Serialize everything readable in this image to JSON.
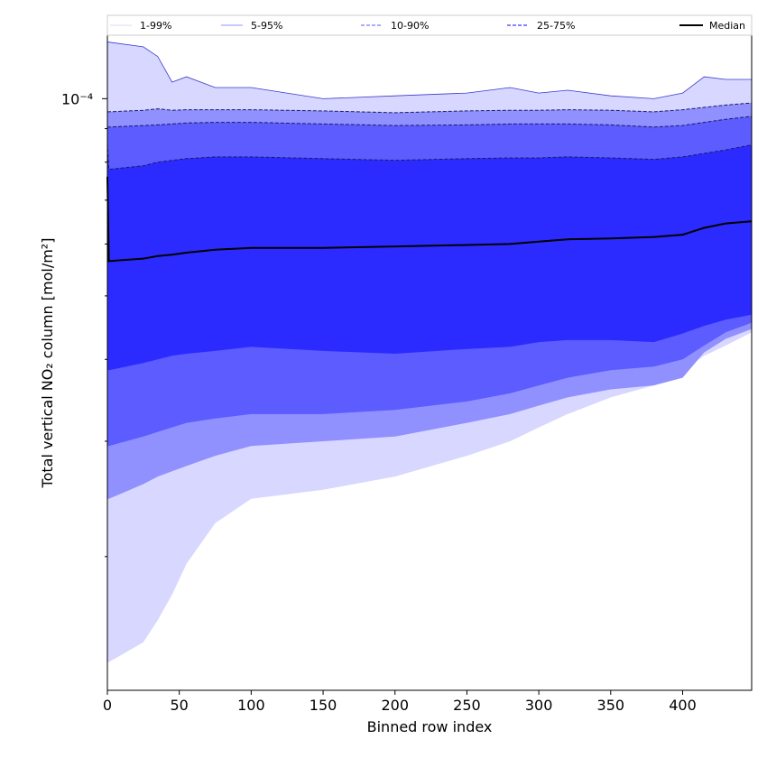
{
  "chart_data": {
    "type": "area",
    "title": "",
    "xlabel": "Binned row index",
    "ylabel": "Total vertical NO₂ column [mol/m²]",
    "xlim": [
      0,
      448
    ],
    "ylim": [
      1.25e-05,
      0.000125
    ],
    "yscale": "log",
    "x_ticks": [
      0,
      50,
      100,
      150,
      200,
      250,
      300,
      350,
      400
    ],
    "x_tick_labels": [
      "0",
      "50",
      "100",
      "150",
      "200",
      "250",
      "300",
      "350",
      "400"
    ],
    "y_major_tick_label": "10⁻⁴",
    "legend_placement": "top (above plot, horizontal)",
    "x": [
      0,
      1,
      25,
      35,
      45,
      55,
      75,
      100,
      150,
      200,
      250,
      280,
      300,
      320,
      350,
      380,
      400,
      415,
      430,
      448
    ],
    "series": [
      {
        "name": "1-99%",
        "color": "#d7d7ff",
        "lower": [
          1.38e-05,
          1.38e-05,
          1.48e-05,
          1.6e-05,
          1.75e-05,
          1.95e-05,
          2.25e-05,
          2.45e-05,
          2.53e-05,
          2.65e-05,
          2.85e-05,
          3e-05,
          3.15e-05,
          3.3e-05,
          3.5e-05,
          3.65e-05,
          3.85e-05,
          4.05e-05,
          4.2e-05,
          4.4e-05
        ],
        "upper": [
          0.000122,
          0.000122,
          0.00012,
          0.000116,
          0.000106,
          0.000108,
          0.000104,
          0.000104,
          0.0001,
          0.000101,
          0.000102,
          0.000104,
          0.000102,
          0.000103,
          0.000101,
          0.0001,
          0.000102,
          0.000108,
          0.000107,
          0.000107
        ]
      },
      {
        "name": "5-95%",
        "color": "#9090ff",
        "lower": [
          2.45e-05,
          2.45e-05,
          2.58e-05,
          2.65e-05,
          2.7e-05,
          2.75e-05,
          2.85e-05,
          2.95e-05,
          3e-05,
          3.05e-05,
          3.2e-05,
          3.3e-05,
          3.4e-05,
          3.5e-05,
          3.6e-05,
          3.65e-05,
          3.75e-05,
          4.1e-05,
          4.3e-05,
          4.45e-05
        ],
        "upper": [
          9.55e-05,
          9.55e-05,
          9.6e-05,
          9.65e-05,
          9.6e-05,
          9.62e-05,
          9.62e-05,
          9.62e-05,
          9.58e-05,
          9.52e-05,
          9.58e-05,
          9.6e-05,
          9.6e-05,
          9.62e-05,
          9.6e-05,
          9.55e-05,
          9.62e-05,
          9.7e-05,
          9.78e-05,
          9.85e-05
        ]
      },
      {
        "name": "10-90%",
        "color": "#5c5cff",
        "lower": [
          2.95e-05,
          2.95e-05,
          3.05e-05,
          3.1e-05,
          3.15e-05,
          3.2e-05,
          3.25e-05,
          3.3e-05,
          3.3e-05,
          3.35e-05,
          3.45e-05,
          3.55e-05,
          3.65e-05,
          3.75e-05,
          3.85e-05,
          3.9e-05,
          4e-05,
          4.2e-05,
          4.4e-05,
          4.55e-05
        ],
        "upper": [
          9.05e-05,
          9.05e-05,
          9.1e-05,
          9.12e-05,
          9.15e-05,
          9.18e-05,
          9.2e-05,
          9.2e-05,
          9.15e-05,
          9.1e-05,
          9.12e-05,
          9.15e-05,
          9.15e-05,
          9.15e-05,
          9.12e-05,
          9.05e-05,
          9.1e-05,
          9.2e-05,
          9.3e-05,
          9.4e-05
        ]
      },
      {
        "name": "25-75%",
        "color": "#2b2bff",
        "lower": [
          3.85e-05,
          3.85e-05,
          3.95e-05,
          4e-05,
          4.05e-05,
          4.08e-05,
          4.12e-05,
          4.18e-05,
          4.12e-05,
          4.08e-05,
          4.15e-05,
          4.18e-05,
          4.25e-05,
          4.28e-05,
          4.28e-05,
          4.25e-05,
          4.38e-05,
          4.5e-05,
          4.6e-05,
          4.68e-05
        ],
        "upper": [
          8.55e-05,
          7.8e-05,
          7.9e-05,
          8e-05,
          8.05e-05,
          8.1e-05,
          8.15e-05,
          8.15e-05,
          8.1e-05,
          8.05e-05,
          8.1e-05,
          8.12e-05,
          8.12e-05,
          8.15e-05,
          8.12e-05,
          8.08e-05,
          8.15e-05,
          8.25e-05,
          8.35e-05,
          8.5e-05
        ]
      },
      {
        "name": "Median",
        "color": "#000000",
        "values": [
          7.6e-05,
          5.65e-05,
          5.7e-05,
          5.75e-05,
          5.78e-05,
          5.82e-05,
          5.88e-05,
          5.92e-05,
          5.92e-05,
          5.95e-05,
          5.98e-05,
          6e-05,
          6.05e-05,
          6.1e-05,
          6.12e-05,
          6.15e-05,
          6.2e-05,
          6.35e-05,
          6.45e-05,
          6.5e-05
        ]
      }
    ]
  }
}
